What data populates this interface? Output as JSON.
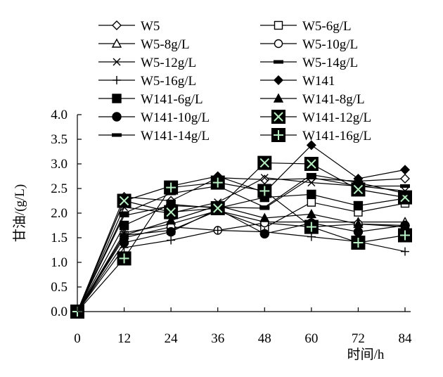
{
  "chart_data": {
    "type": "line",
    "xlabel": "时间/h",
    "ylabel": "甘油/(g/L)",
    "x": [
      0,
      12,
      24,
      36,
      48,
      60,
      72,
      84
    ],
    "xticks": [
      "0",
      "12",
      "24",
      "36",
      "48",
      "60",
      "72",
      "84"
    ],
    "ylim": [
      0,
      4.0
    ],
    "yticks": [
      "0.0",
      "0.5",
      "1.0",
      "1.5",
      "2.0",
      "2.5",
      "3.0",
      "3.5",
      "4.0"
    ],
    "grid": false,
    "legend_position": "top",
    "series": [
      {
        "name": "W5",
        "marker": "diamond-open",
        "values": [
          0,
          2.33,
          2.25,
          2.72,
          2.68,
          2.7,
          2.65,
          2.7
        ]
      },
      {
        "name": "W5-6g/L",
        "marker": "square-open",
        "values": [
          0,
          1.55,
          1.65,
          2.05,
          1.7,
          2.22,
          2.02,
          2.2
        ]
      },
      {
        "name": "W5-8g/L",
        "marker": "triangle-open",
        "values": [
          0,
          1.6,
          1.78,
          2.05,
          1.82,
          1.82,
          1.82,
          1.82
        ]
      },
      {
        "name": "W5-10g/L",
        "marker": "circle-open",
        "values": [
          0,
          1.5,
          1.72,
          1.65,
          1.8,
          1.72,
          1.78,
          1.72
        ]
      },
      {
        "name": "W5-12g/L",
        "marker": "x",
        "values": [
          0,
          2.12,
          2.0,
          2.22,
          2.72,
          2.62,
          2.55,
          2.45
        ]
      },
      {
        "name": "W5-14g/L",
        "marker": "dash",
        "values": [
          0,
          1.95,
          2.15,
          2.12,
          2.1,
          2.72,
          2.55,
          2.55
        ]
      },
      {
        "name": "W5-16g/L",
        "marker": "plus",
        "values": [
          0,
          1.3,
          1.45,
          1.65,
          1.62,
          1.52,
          1.42,
          1.22
        ]
      },
      {
        "name": "W141",
        "marker": "diamond-filled",
        "values": [
          0,
          2.25,
          2.55,
          2.75,
          2.42,
          3.38,
          2.7,
          2.88
        ]
      },
      {
        "name": "W141-6g/L",
        "marker": "square-filled",
        "values": [
          0,
          1.75,
          2.18,
          2.1,
          2.32,
          2.38,
          2.15,
          2.3
        ]
      },
      {
        "name": "W141-8g/L",
        "marker": "triangle-filled",
        "values": [
          0,
          1.55,
          1.85,
          2.15,
          1.9,
          1.98,
          1.78,
          1.75
        ]
      },
      {
        "name": "W141-10g/L",
        "marker": "circle-filled",
        "values": [
          0,
          1.4,
          1.62,
          2.08,
          1.58,
          1.8,
          1.62,
          1.75
        ]
      },
      {
        "name": "W141-12g/L",
        "marker": "square-x",
        "values": [
          0,
          2.25,
          2.02,
          2.1,
          3.02,
          3.0,
          2.48,
          2.32
        ]
      },
      {
        "name": "W141-14g/L",
        "marker": "dash",
        "values": [
          0,
          2.0,
          2.4,
          2.55,
          2.12,
          2.78,
          2.62,
          2.4
        ]
      },
      {
        "name": "W141-16g/L",
        "marker": "square-plus",
        "values": [
          0,
          1.08,
          2.52,
          2.62,
          2.45,
          1.72,
          1.4,
          1.55
        ]
      }
    ]
  }
}
